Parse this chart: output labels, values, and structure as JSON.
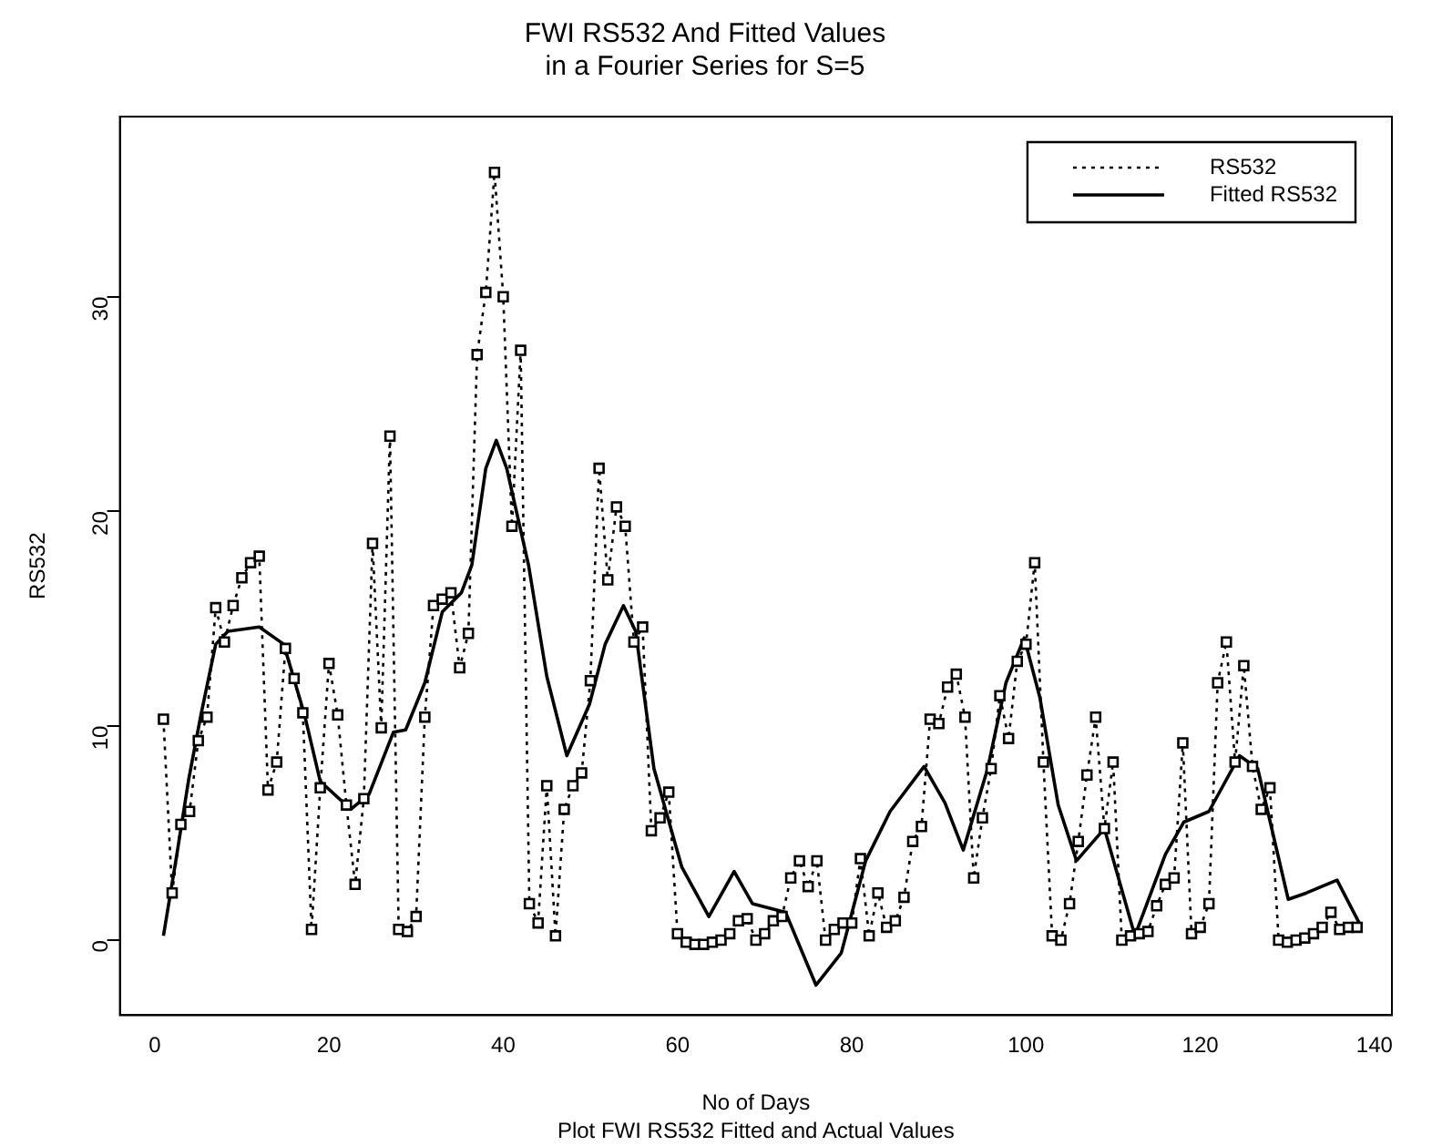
{
  "chart_data": {
    "type": "line",
    "title": "FWI RS532 And Fitted Values",
    "subtitle": "in a Fourier Series for S=5",
    "xlabel": "No of Days",
    "ylabel": "RS532",
    "annotations": [
      "Plot FWI RS532 Fitted and Actual Values"
    ],
    "xlim": [
      -4,
      142
    ],
    "xticks": [
      0,
      20,
      40,
      60,
      80,
      100,
      120,
      140
    ],
    "ylim": [
      -3.5,
      38.4
    ],
    "yticks": [
      0,
      10,
      20,
      30
    ],
    "grid": false,
    "legend": "top right",
    "series": [
      {
        "name": "RS532",
        "color": "#000000",
        "marker": "square",
        "line_style": "dotted",
        "x": [
          1,
          2,
          3,
          4,
          5,
          6,
          7,
          8,
          9,
          10,
          11,
          12,
          13,
          14,
          15,
          16,
          17,
          18,
          19,
          20,
          21,
          22,
          23,
          24,
          25,
          26,
          27,
          28,
          29,
          30,
          31,
          32,
          33,
          34,
          35,
          36,
          37,
          38,
          39,
          40,
          41,
          42,
          43,
          44,
          45,
          46,
          47,
          48,
          49,
          50,
          51,
          52,
          53,
          54,
          55,
          56,
          57,
          58,
          59,
          60,
          61,
          62,
          63,
          64,
          65,
          66,
          67,
          68,
          69,
          70,
          71,
          72,
          73,
          74,
          75,
          76,
          77,
          78,
          79,
          80,
          81,
          82,
          83,
          84,
          85,
          86,
          87,
          88,
          89,
          90,
          91,
          92,
          93,
          94,
          95,
          96,
          97,
          98,
          99,
          100,
          101,
          102,
          103,
          104,
          105,
          106,
          107,
          108,
          109,
          110,
          111,
          112,
          113,
          114,
          115,
          116,
          117,
          118,
          119,
          120,
          121,
          122,
          123,
          124,
          125,
          126,
          127,
          128,
          129,
          130,
          131,
          132,
          133,
          134,
          135,
          136,
          137,
          138
        ],
        "values": [
          10.3,
          2.2,
          5.4,
          6.0,
          9.3,
          10.4,
          15.5,
          13.9,
          15.6,
          16.9,
          17.6,
          17.9,
          7.0,
          8.3,
          13.6,
          12.2,
          10.6,
          0.5,
          7.1,
          12.9,
          10.5,
          6.3,
          2.6,
          6.6,
          18.5,
          9.9,
          23.5,
          0.5,
          0.4,
          1.1,
          10.4,
          15.6,
          15.9,
          16.2,
          12.7,
          14.3,
          27.3,
          30.2,
          35.8,
          30.0,
          19.3,
          27.5,
          1.7,
          0.8,
          7.2,
          0.2,
          6.1,
          7.2,
          7.8,
          12.1,
          22.0,
          16.8,
          20.2,
          19.3,
          13.9,
          14.6,
          5.1,
          5.7,
          6.9,
          0.3,
          -0.1,
          -0.2,
          -0.2,
          -0.1,
          0.0,
          0.3,
          0.9,
          1.0,
          0.0,
          0.3,
          0.9,
          1.1,
          2.9,
          3.7,
          2.5,
          3.7,
          0.0,
          0.5,
          0.8,
          0.8,
          3.8,
          0.2,
          2.2,
          0.6,
          0.9,
          2.0,
          4.6,
          5.3,
          10.3,
          10.1,
          11.8,
          12.4,
          10.4,
          2.9,
          5.7,
          8.0,
          11.4,
          9.4,
          13.0,
          13.8,
          17.6,
          8.3,
          0.2,
          0.0,
          1.7,
          4.6,
          7.7,
          10.4,
          5.2,
          8.3,
          0.0,
          0.2,
          0.3,
          0.4,
          1.6,
          2.6,
          2.9,
          9.2,
          0.3,
          0.6,
          1.7,
          12.0,
          13.9,
          8.3,
          12.8,
          8.1,
          6.1,
          7.1,
          0.0,
          -0.1,
          0.0,
          0.1,
          0.3,
          0.6,
          1.3,
          0.5,
          0.6,
          0.6
        ]
      },
      {
        "name": "Fitted RS532",
        "color": "#000000",
        "marker": "none",
        "line_style": "solid",
        "x": [
          1,
          2.5,
          3.9,
          5.3,
          7,
          8.4,
          12,
          14.8,
          17.2,
          19,
          22.5,
          24.6,
          27.4,
          28.8,
          31,
          33,
          35.2,
          36.4,
          38,
          39.2,
          40.4,
          42.9,
          45,
          47.3,
          49.9,
          51.7,
          53.8,
          55.2,
          57.3,
          60.5,
          63.6,
          66.5,
          68.6,
          72.4,
          75.9,
          78.8,
          81.6,
          84.4,
          88.3,
          90.7,
          92.8,
          95.6,
          97.7,
          99.8,
          101.6,
          103.7,
          105.8,
          109,
          112.5,
          116,
          118.1,
          121,
          124.5,
          126.6,
          130.1,
          132.2,
          135.7,
          138.5
        ],
        "values": [
          0.2,
          3.9,
          7.5,
          10.5,
          13.8,
          14.4,
          14.6,
          13.8,
          10.5,
          7.4,
          6.1,
          6.8,
          9.7,
          9.8,
          12.0,
          15.3,
          16.2,
          17.5,
          22.0,
          23.3,
          22.0,
          17.5,
          12.3,
          8.6,
          11.0,
          13.8,
          15.6,
          14.4,
          8.0,
          3.4,
          1.1,
          3.2,
          1.7,
          1.3,
          -2.1,
          -0.6,
          3.7,
          6.0,
          8.1,
          6.4,
          4.2,
          8.0,
          12.0,
          14.1,
          11.3,
          6.3,
          3.7,
          5.2,
          0.2,
          4.0,
          5.5,
          6.0,
          8.6,
          8.0,
          1.9,
          2.2,
          2.8,
          0.6
        ]
      }
    ]
  }
}
